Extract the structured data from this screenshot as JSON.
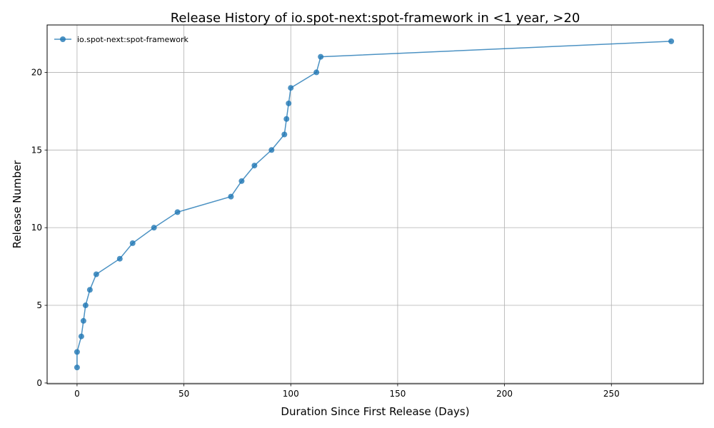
{
  "chart_data": {
    "type": "line",
    "title": "Release History of io.spot-next:spot-framework in <1 year, >20",
    "xlabel": "Duration Since First Release (Days)",
    "ylabel": "Release Number",
    "xlim": [
      -14,
      293
    ],
    "ylim": [
      -0.05,
      23.05
    ],
    "xticks": [
      0,
      50,
      100,
      150,
      200,
      250
    ],
    "yticks": [
      0,
      5,
      10,
      15,
      20
    ],
    "grid": true,
    "legend_position": "top-left",
    "series": [
      {
        "name": "io.spot-next:spot-framework",
        "color": "#1f77b4",
        "x": [
          0,
          0,
          2,
          3,
          4,
          6,
          9,
          20,
          26,
          36,
          47,
          72,
          77,
          83,
          91,
          97,
          98,
          99,
          100,
          112,
          114,
          278
        ],
        "y": [
          1,
          2,
          3,
          4,
          5,
          6,
          7,
          8,
          9,
          10,
          11,
          12,
          13,
          14,
          15,
          16,
          17,
          18,
          19,
          20,
          21,
          22
        ]
      }
    ]
  }
}
